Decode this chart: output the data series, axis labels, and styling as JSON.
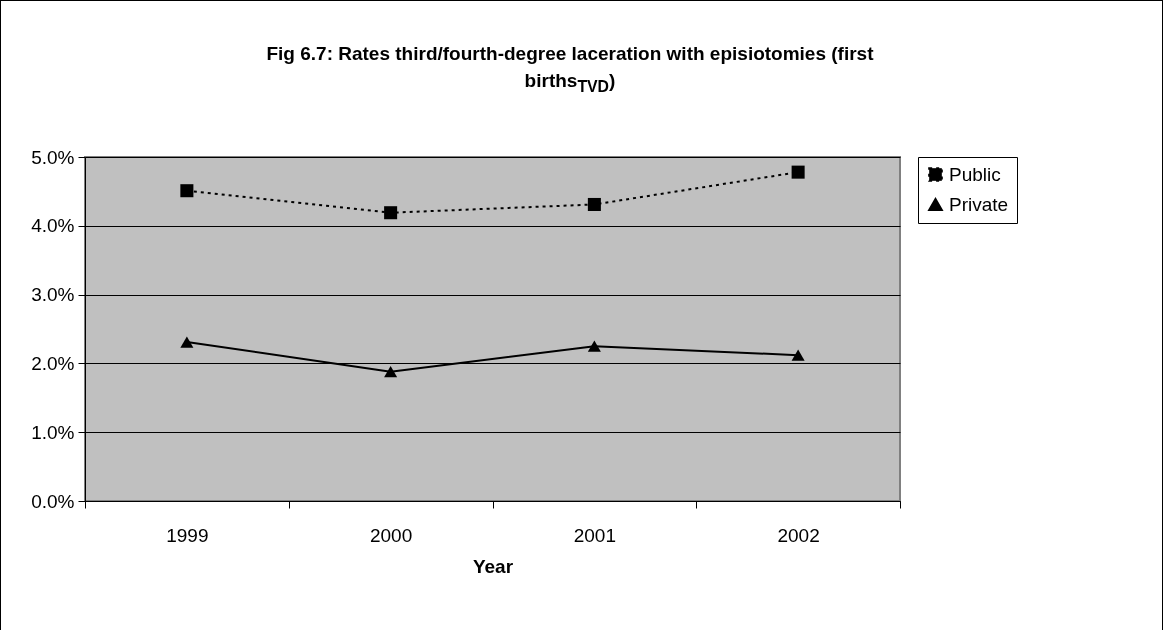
{
  "chart_data": {
    "type": "line",
    "title": "Fig 6.7: Rates third/fourth-degree laceration with episiotomies (first births$_{TVD}$)",
    "xlabel": "Year",
    "categories": [
      "1999",
      "2000",
      "2001",
      "2002"
    ],
    "series": [
      {
        "name": "Public",
        "color": "#000000",
        "marker": "square",
        "line_style": "dotted",
        "values": [
          4.51,
          4.19,
          4.31,
          4.78
        ]
      },
      {
        "name": "Private",
        "color": "#000000",
        "marker": "triangle",
        "line_style": "solid",
        "values": [
          2.31,
          1.88,
          2.25,
          2.12
        ]
      }
    ],
    "ylim": [
      0,
      5
    ],
    "yticks": [
      {
        "value": 0,
        "label": "0.0%"
      },
      {
        "value": 1,
        "label": "1.0%"
      },
      {
        "value": 2,
        "label": "2.0%"
      },
      {
        "value": 3,
        "label": "3.0%"
      },
      {
        "value": 4,
        "label": "4.0%"
      },
      {
        "value": 5,
        "label": "5.0%"
      }
    ],
    "grid": "y",
    "legend": "right"
  }
}
